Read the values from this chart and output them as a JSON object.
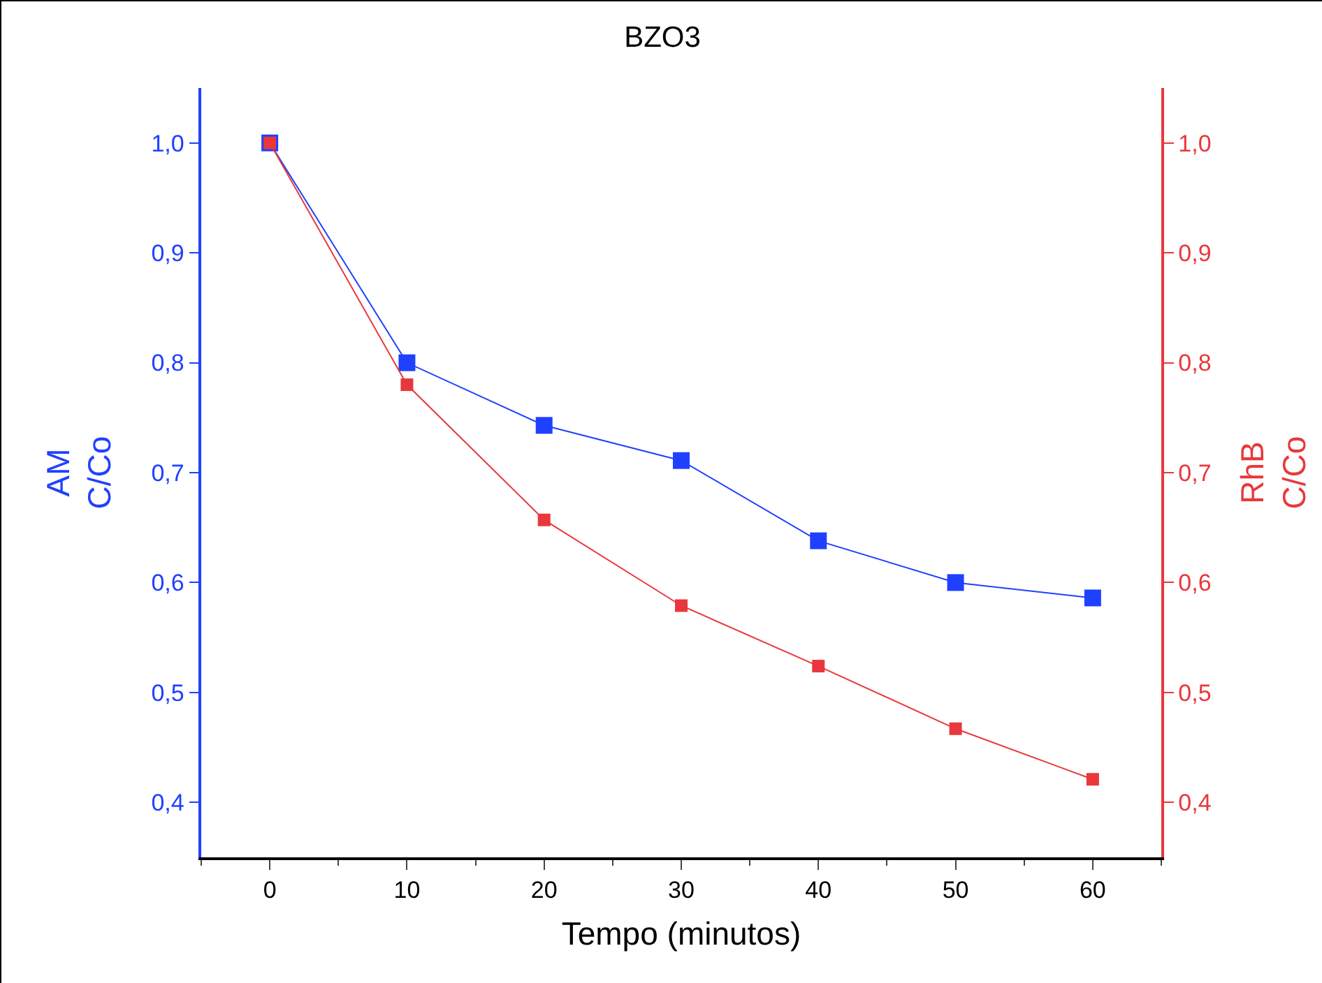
{
  "chart_data": {
    "type": "line",
    "title": "BZO3",
    "xlabel": "Tempo (minutos)",
    "ylabel": "C/Co",
    "y2label": "C/Co",
    "x": [
      0,
      10,
      20,
      30,
      40,
      50,
      60
    ],
    "series": [
      {
        "name": "AM",
        "color": "#2040ff",
        "values": [
          1.0,
          0.8,
          0.743,
          0.711,
          0.638,
          0.6,
          0.586
        ]
      },
      {
        "name": "RhB",
        "color": "#e8383d",
        "axis": "y2",
        "values": [
          1.0,
          0.78,
          0.657,
          0.579,
          0.524,
          0.467,
          0.421
        ]
      }
    ],
    "xlim": [
      -5,
      65
    ],
    "xticks": [
      0,
      10,
      20,
      30,
      40,
      50,
      60
    ],
    "ylim": [
      0.35,
      1.05
    ],
    "yticks": [
      {
        "value": 0.4,
        "label": "0,4"
      },
      {
        "value": 0.5,
        "label": "0,5"
      },
      {
        "value": 0.6,
        "label": "0,6"
      },
      {
        "value": 0.7,
        "label": "0,7"
      },
      {
        "value": 0.8,
        "label": "0,8"
      },
      {
        "value": 0.9,
        "label": "0,9"
      },
      {
        "value": 1.0,
        "label": "1,0"
      }
    ],
    "y2lim": [
      0.35,
      1.05
    ],
    "y2ticks": [
      {
        "value": 0.4,
        "label": "0,4"
      },
      {
        "value": 0.5,
        "label": "0,5"
      },
      {
        "value": 0.6,
        "label": "0,6"
      },
      {
        "value": 0.7,
        "label": "0,7"
      },
      {
        "value": 0.8,
        "label": "0,8"
      },
      {
        "value": 0.9,
        "label": "0,9"
      },
      {
        "value": 1.0,
        "label": "1,0"
      }
    ],
    "marker": "square",
    "line_style": "solid",
    "grid": false,
    "legend": false
  }
}
